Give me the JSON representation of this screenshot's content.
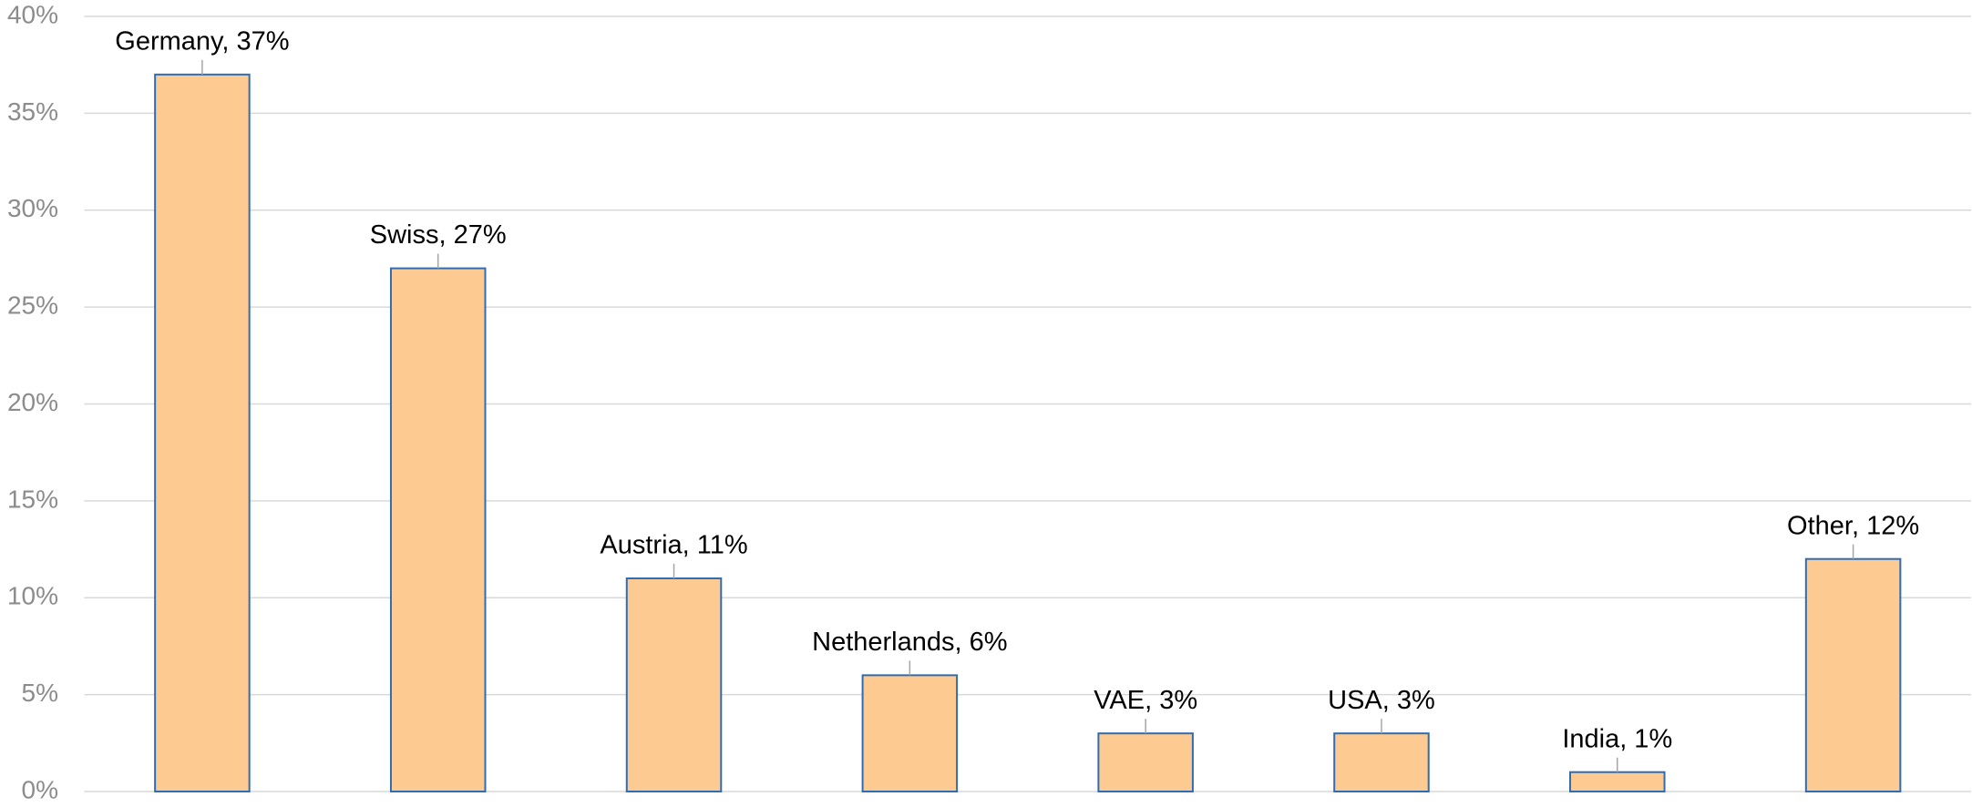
{
  "chart_data": {
    "type": "bar",
    "values": [
      37,
      27,
      11,
      6,
      3,
      3,
      1,
      12
    ],
    "value_labels": [
      "Germany, 37%",
      "Swiss, 27%",
      "Austria, 11%",
      "Netherlands, 6%",
      "VAE, 3%",
      "USA, 3%",
      "India, 1%",
      "Other, 12%"
    ],
    "color": "#fdca92",
    "edge_color": "#2e6db4",
    "ylim": [
      0,
      40
    ],
    "yticks": [
      {
        "value": 0,
        "label": "0%"
      },
      {
        "value": 5,
        "label": "5%"
      },
      {
        "value": 10,
        "label": "10%"
      },
      {
        "value": 15,
        "label": "15%"
      },
      {
        "value": 20,
        "label": "20%"
      },
      {
        "value": 25,
        "label": "25%"
      },
      {
        "value": 30,
        "label": "30%"
      },
      {
        "value": 35,
        "label": "35%"
      },
      {
        "value": 40,
        "label": "40%"
      }
    ],
    "grid": true
  }
}
